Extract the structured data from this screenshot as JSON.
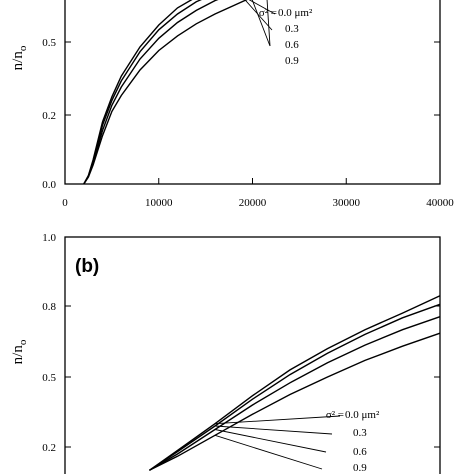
{
  "chart_data": [
    {
      "type": "line",
      "panel_label": "",
      "xlabel": "",
      "ylabel": "n/n",
      "ylabel_sub": "o",
      "xlim": [
        0,
        40000
      ],
      "ylim": [
        0,
        0.8
      ],
      "x_ticks": [
        "0",
        "10000",
        "20000",
        "30000",
        "40000"
      ],
      "y_ticks": [
        "0.0",
        "0.2",
        "0.5"
      ],
      "legend": {
        "prefix": "σ² = ",
        "labels": [
          "0.0 μm²",
          "0.3",
          "0.6",
          "0.9"
        ]
      },
      "series": [
        {
          "x": [
            2000,
            2500,
            3000,
            4000,
            5000,
            6000,
            8000,
            10000,
            12000,
            14000,
            16000,
            17000
          ],
          "values": [
            0,
            0.025,
            0.07,
            0.18,
            0.275,
            0.36,
            0.48,
            0.57,
            0.64,
            0.685,
            0.715,
            0.73
          ]
        },
        {
          "x": [
            2000,
            2500,
            3000,
            4000,
            5000,
            6000,
            8000,
            10000,
            12000,
            14000,
            16000,
            18000
          ],
          "values": [
            0,
            0.023,
            0.065,
            0.17,
            0.26,
            0.34,
            0.46,
            0.55,
            0.615,
            0.665,
            0.7,
            0.725
          ]
        },
        {
          "x": [
            2000,
            2500,
            3000,
            4000,
            5000,
            6000,
            8000,
            10000,
            12000,
            14000,
            16000,
            18000,
            19500
          ],
          "values": [
            0,
            0.022,
            0.06,
            0.155,
            0.24,
            0.315,
            0.43,
            0.515,
            0.58,
            0.63,
            0.67,
            0.7,
            0.72
          ]
        },
        {
          "x": [
            2000,
            2500,
            3000,
            4000,
            5000,
            6000,
            8000,
            10000,
            12000,
            14000,
            16000,
            18000,
            20000,
            21500
          ],
          "values": [
            0,
            0.02,
            0.055,
            0.14,
            0.215,
            0.28,
            0.385,
            0.465,
            0.525,
            0.575,
            0.615,
            0.65,
            0.685,
            0.705
          ]
        }
      ]
    },
    {
      "type": "line",
      "panel_label": "(b)",
      "xlabel": "",
      "ylabel": "n/n",
      "ylabel_sub": "o",
      "xlim": [
        0,
        40000
      ],
      "ylim": [
        0,
        1.0
      ],
      "x_ticks": [],
      "y_ticks": [
        "1.0",
        "0.8",
        "0.5",
        "0.2"
      ],
      "legend": {
        "prefix": "σ² = ",
        "labels": [
          "0.0 μm²",
          "0.3",
          "0.6",
          "0.9"
        ]
      },
      "series": [
        {
          "x": [
            9000,
            12000,
            16000,
            20000,
            24000,
            28000,
            32000,
            36000,
            40000
          ],
          "values": [
            0.1,
            0.185,
            0.3,
            0.42,
            0.53,
            0.62,
            0.7,
            0.77,
            0.83
          ]
        },
        {
          "x": [
            9000,
            12000,
            16000,
            20000,
            24000,
            28000,
            32000,
            36000,
            40000
          ],
          "values": [
            0.1,
            0.18,
            0.29,
            0.405,
            0.51,
            0.6,
            0.68,
            0.75,
            0.805
          ]
        },
        {
          "x": [
            9000,
            12000,
            16000,
            20000,
            24000,
            28000,
            32000,
            36000,
            40000
          ],
          "values": [
            0.1,
            0.17,
            0.275,
            0.38,
            0.475,
            0.56,
            0.635,
            0.7,
            0.755
          ]
        },
        {
          "x": [
            9000,
            12000,
            16000,
            20000,
            24000,
            28000,
            32000,
            36000,
            40000
          ],
          "values": [
            0.1,
            0.16,
            0.25,
            0.34,
            0.425,
            0.5,
            0.57,
            0.63,
            0.685
          ]
        }
      ]
    }
  ]
}
